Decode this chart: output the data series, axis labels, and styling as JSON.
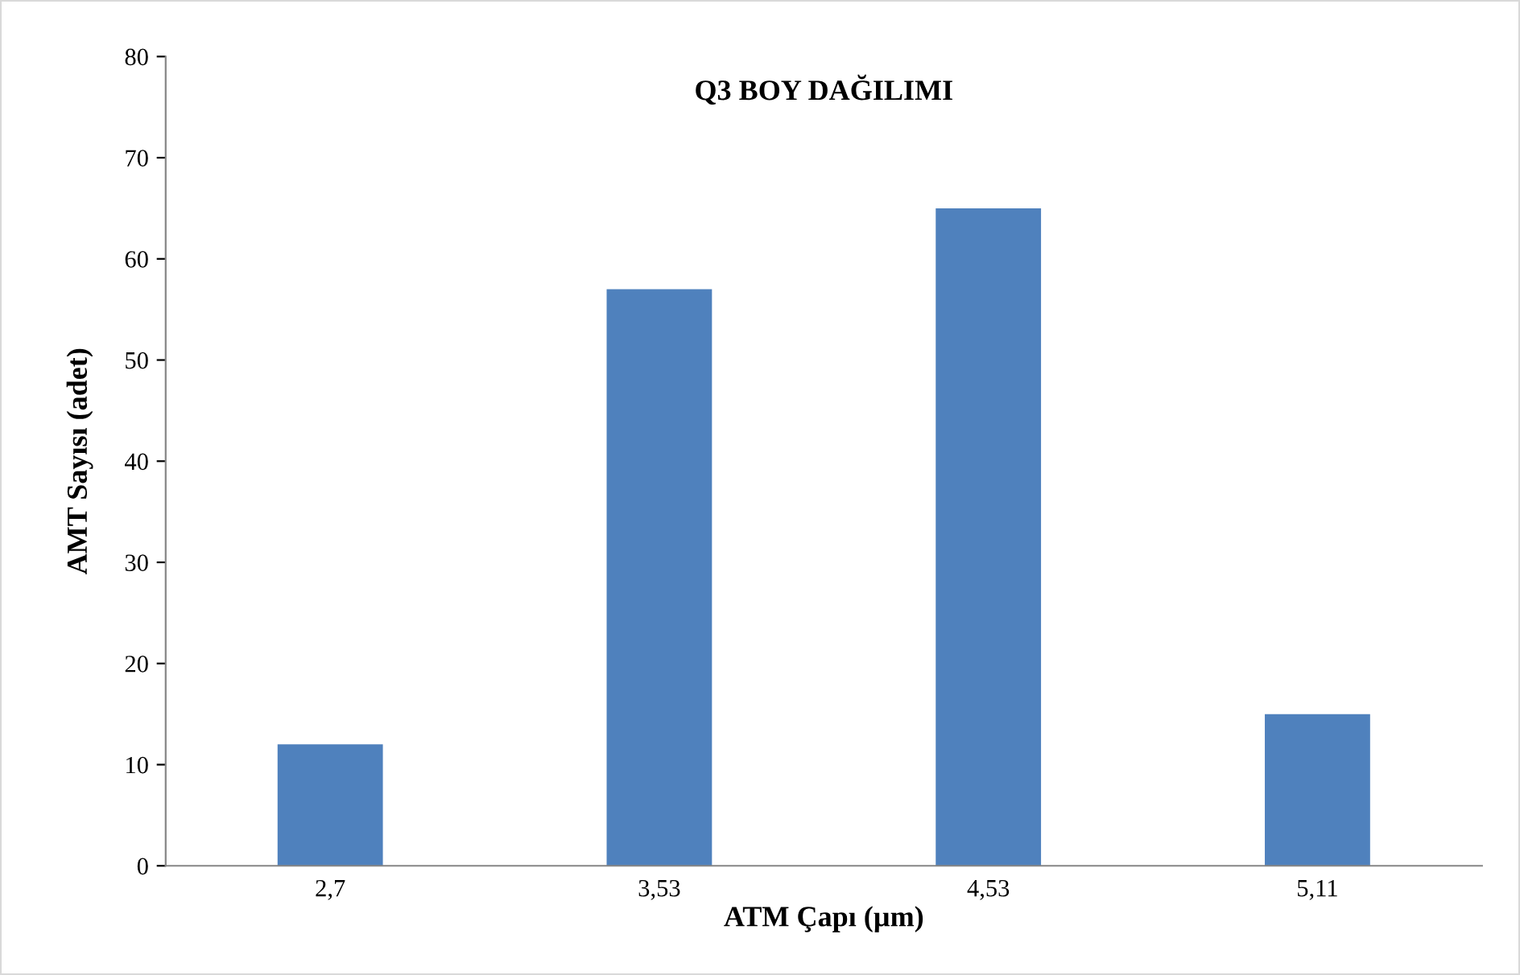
{
  "chart_data": {
    "type": "bar",
    "title": "Q3 BOY DAĞILIMI",
    "xlabel": "ATM Çapı (µm)",
    "ylabel": "AMT Sayısı (adet)",
    "categories": [
      "2,7",
      "3,53",
      "4,53",
      "5,11"
    ],
    "values": [
      12,
      57,
      65,
      15
    ],
    "color": "#4f81bd",
    "ylim": [
      0,
      80
    ],
    "yticks": [
      0,
      10,
      20,
      30,
      40,
      50,
      60,
      70,
      80
    ],
    "grid": false,
    "legend": false
  }
}
